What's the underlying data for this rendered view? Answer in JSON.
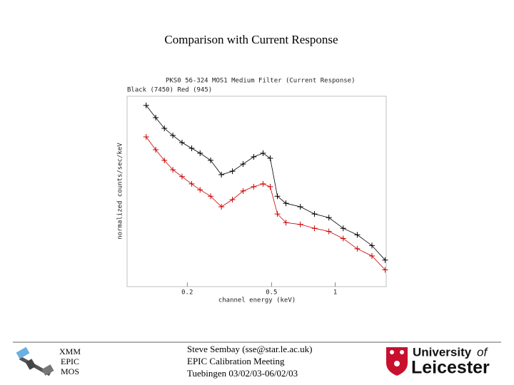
{
  "slide": {
    "title": "Comparison with Current Response",
    "footer_left": [
      "XMM",
      "EPIC",
      "MOS"
    ],
    "footer_center": [
      "Steve Sembay (sse@star.le.ac.uk)",
      "EPIC Calibration Meeting",
      "Tuebingen 03/02/03-06/02/03"
    ],
    "logo": [
      "University",
      "of",
      "Leicester"
    ]
  },
  "chart_data": {
    "type": "line",
    "title": "PKS0 56-324 MOS1 Medium Filter (Current Response)",
    "subtitle": "Black (7450) Red (945)",
    "x_label": "channel energy (keV)",
    "y_label": "normalized counts/sec/keV",
    "x_scale": "log",
    "y_scale": "log",
    "xlim": [
      0.104,
      1.74
    ],
    "ylim": [
      0.1,
      10
    ],
    "xticks": [
      0.2,
      0.5,
      1
    ],
    "x": [
      0.128,
      0.142,
      0.156,
      0.171,
      0.189,
      0.21,
      0.23,
      0.258,
      0.29,
      0.327,
      0.367,
      0.412,
      0.456,
      0.493,
      0.533,
      0.585,
      0.684,
      0.798,
      0.933,
      1.09,
      1.27,
      1.49,
      1.72
    ],
    "series": [
      {
        "name": "Black (7450)",
        "color": "#000000",
        "values": [
          8.0,
          5.96,
          4.6,
          3.87,
          3.26,
          2.84,
          2.52,
          2.12,
          1.5,
          1.63,
          1.94,
          2.31,
          2.52,
          2.23,
          0.89,
          0.75,
          0.69,
          0.58,
          0.53,
          0.41,
          0.35,
          0.27,
          0.19
        ]
      },
      {
        "name": "Red (945)",
        "color": "#cc0000",
        "values": [
          3.74,
          2.74,
          2.12,
          1.69,
          1.43,
          1.2,
          1.04,
          0.89,
          0.69,
          0.82,
          1.01,
          1.12,
          1.2,
          1.12,
          0.58,
          0.47,
          0.45,
          0.41,
          0.38,
          0.32,
          0.25,
          0.21,
          0.15
        ]
      }
    ]
  }
}
